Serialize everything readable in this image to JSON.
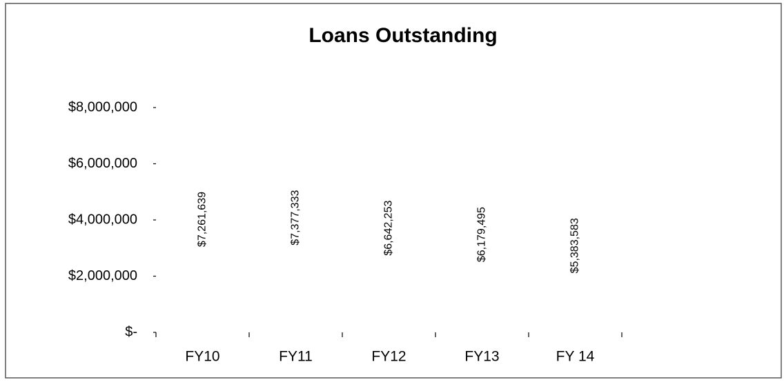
{
  "chart_data": {
    "type": "bar",
    "title": "Loans Outstanding",
    "categories": [
      "FY10",
      "FY11",
      "FY12",
      "FY13",
      "FY 14"
    ],
    "values": [
      7261639,
      7377333,
      6642253,
      6179495,
      5383583
    ],
    "value_labels": [
      "$7,261,639",
      "$7,377,333",
      "$6,642,253",
      "$6,179,495",
      "$5,383,583"
    ],
    "color": "#ffffff",
    "ylim": [
      0,
      8000000
    ],
    "yticks": [
      {
        "value": 0,
        "label": "$-"
      },
      {
        "value": 2000000,
        "label": "$2,000,000"
      },
      {
        "value": 4000000,
        "label": "$4,000,000"
      },
      {
        "value": 6000000,
        "label": "$6,000,000"
      },
      {
        "value": 8000000,
        "label": "$8,000,000"
      }
    ],
    "grid": false
  }
}
